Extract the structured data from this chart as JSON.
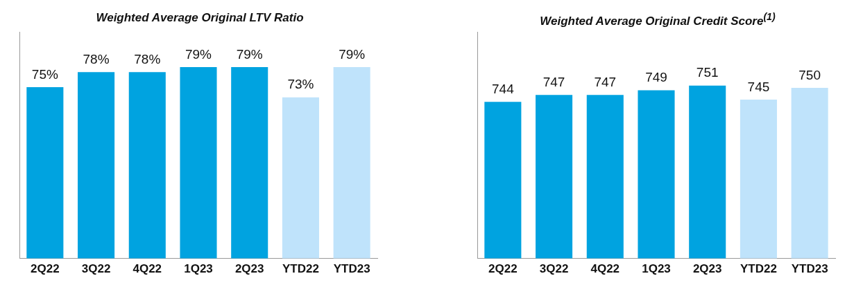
{
  "chart_data": [
    {
      "type": "bar",
      "title": "Weighted Average Original LTV Ratio",
      "categories": [
        "2Q22",
        "3Q22",
        "4Q22",
        "1Q23",
        "2Q23",
        "YTD22",
        "YTD23"
      ],
      "values": [
        75,
        78,
        78,
        79,
        79,
        73,
        79
      ],
      "value_labels": [
        "75%",
        "78%",
        "78%",
        "79%",
        "79%",
        "73%",
        "79%"
      ],
      "colors": [
        "#00a3e0",
        "#00a3e0",
        "#00a3e0",
        "#00a3e0",
        "#00a3e0",
        "#bfe3fb",
        "#bfe3fb"
      ],
      "ylim": [
        41,
        86
      ],
      "tick_labels": "x",
      "grid": false,
      "legend": false
    },
    {
      "type": "bar",
      "title": "Weighted Average Original Credit Score$^{(1)}$",
      "categories": [
        "2Q22",
        "3Q22",
        "4Q22",
        "1Q23",
        "2Q23",
        "YTD22",
        "YTD23"
      ],
      "values": [
        744,
        747,
        747,
        749,
        751,
        745,
        750
      ],
      "data_labels": true,
      "colors": [
        "#00a3e0",
        "#00a3e0",
        "#00a3e0",
        "#00a3e0",
        "#00a3e0",
        "#bfe3fb",
        "#bfe3fb"
      ],
      "ylim": [
        677,
        774
      ],
      "tick_labels": "x",
      "grid": false,
      "legend": false
    }
  ]
}
